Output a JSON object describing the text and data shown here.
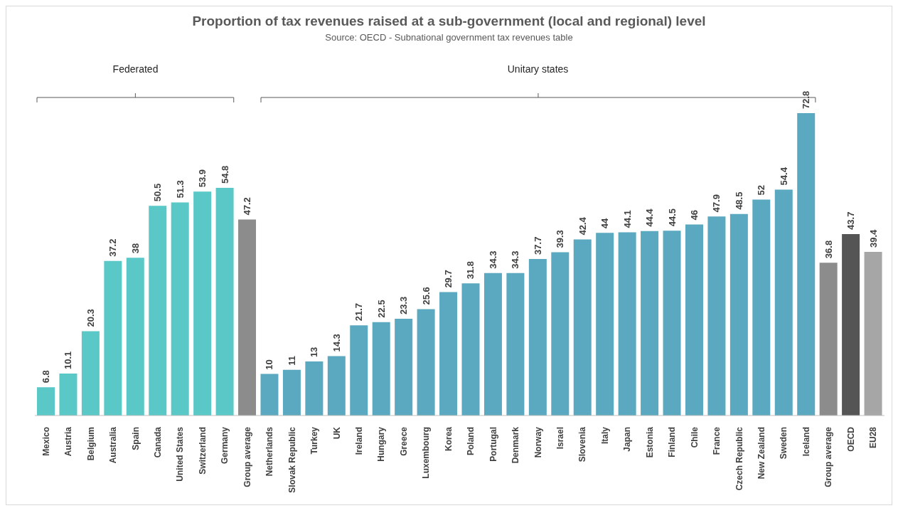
{
  "chart_data": {
    "type": "bar",
    "title": "Proportion of tax revenues raised at a sub-government (local and regional) level",
    "subtitle": "Source: OECD - Subnational government tax revenues table",
    "categories": [
      "Mexico",
      "Austria",
      "Belgium",
      "Australia",
      "Spain",
      "Canada",
      "United States",
      "Switzerland",
      "Germany",
      "Group average",
      "Netherlands",
      "Slovak Republic",
      "Turkey",
      "UK",
      "Ireland",
      "Hungary",
      "Greece",
      "Luxembourg",
      "Korea",
      "Poland",
      "Portugal",
      "Denmark",
      "Norway",
      "Israel",
      "Slovenia",
      "Italy",
      "Japan",
      "Estonia",
      "Finland",
      "Chile",
      "France",
      "Czech Republic",
      "New Zealand",
      "Sweden",
      "Iceland",
      "Group average",
      "OECD",
      "EU28"
    ],
    "values": [
      6.8,
      10.1,
      20.3,
      37.2,
      38,
      50.5,
      51.3,
      53.9,
      54.8,
      47.2,
      10,
      11,
      13,
      14.3,
      21.7,
      22.5,
      23.3,
      25.6,
      29.7,
      31.8,
      34.3,
      34.3,
      37.7,
      39.3,
      42.4,
      44,
      44.1,
      44.4,
      44.5,
      46,
      47.9,
      48.5,
      52,
      54.4,
      72.8,
      36.8,
      43.7,
      39.4
    ],
    "colors": [
      "#5bc8c8",
      "#5bc8c8",
      "#5bc8c8",
      "#5bc8c8",
      "#5bc8c8",
      "#5bc8c8",
      "#5bc8c8",
      "#5bc8c8",
      "#5bc8c8",
      "#8c8c8c",
      "#5aa9c0",
      "#5aa9c0",
      "#5aa9c0",
      "#5aa9c0",
      "#5aa9c0",
      "#5aa9c0",
      "#5aa9c0",
      "#5aa9c0",
      "#5aa9c0",
      "#5aa9c0",
      "#5aa9c0",
      "#5aa9c0",
      "#5aa9c0",
      "#5aa9c0",
      "#5aa9c0",
      "#5aa9c0",
      "#5aa9c0",
      "#5aa9c0",
      "#5aa9c0",
      "#5aa9c0",
      "#5aa9c0",
      "#5aa9c0",
      "#5aa9c0",
      "#5aa9c0",
      "#5aa9c0",
      "#8c8c8c",
      "#555555",
      "#a6a6a6"
    ],
    "annotations": [
      "Federated",
      "Unitary states"
    ],
    "data_labels": true,
    "grid": false,
    "legend": false
  }
}
